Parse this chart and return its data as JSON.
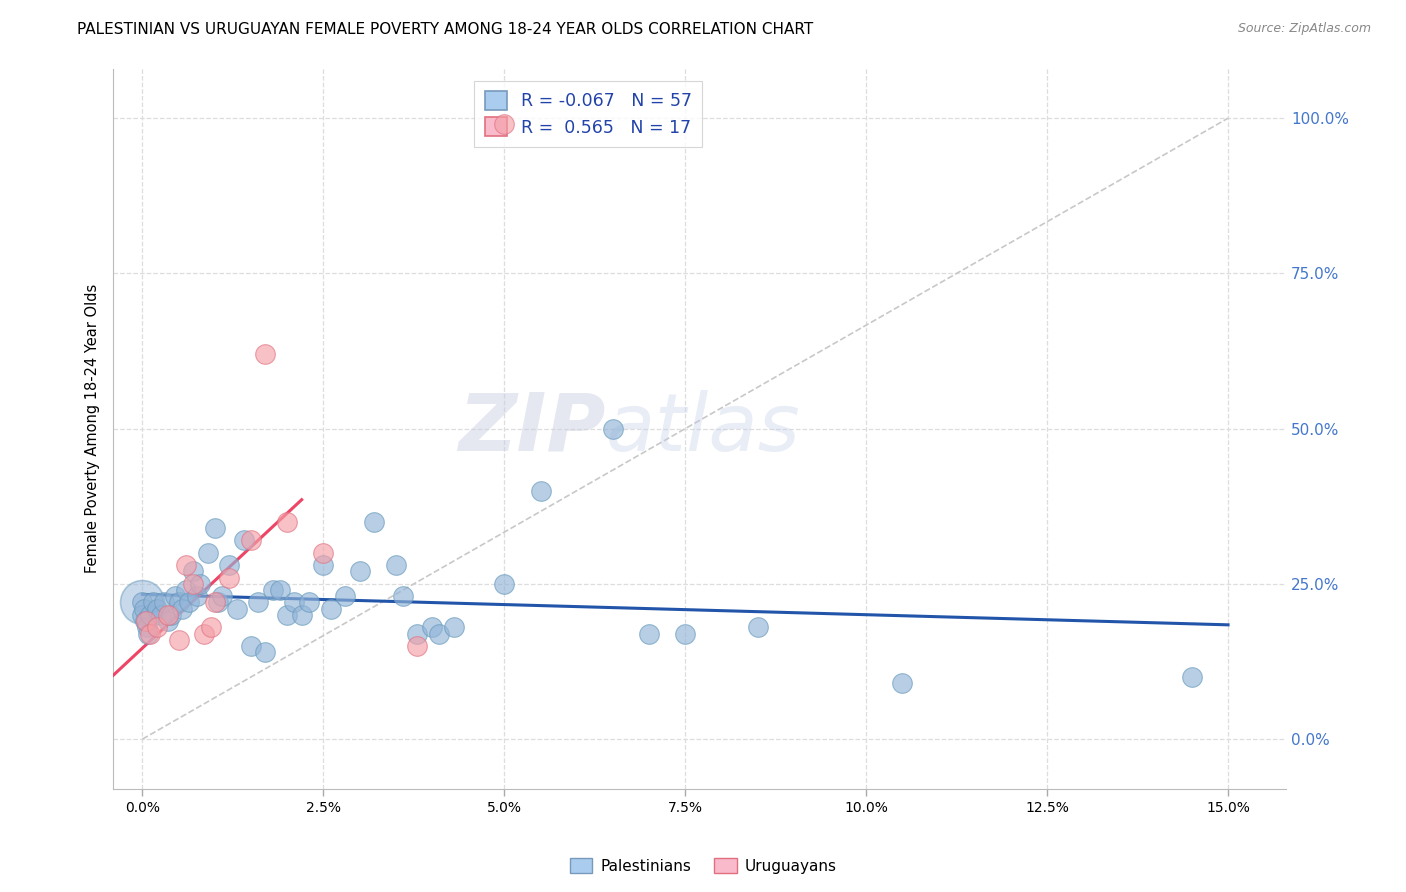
{
  "title": "PALESTINIAN VS URUGUAYAN FEMALE POVERTY AMONG 18-24 YEAR OLDS CORRELATION CHART",
  "source": "Source: ZipAtlas.com",
  "xlabel_vals": [
    0,
    2.5,
    5.0,
    7.5,
    10.0,
    12.5,
    15.0
  ],
  "ylabel_vals": [
    0,
    25,
    50,
    75,
    100
  ],
  "ylabel_label": "Female Poverty Among 18-24 Year Olds",
  "xlim": [
    -0.4,
    15.8
  ],
  "ylim": [
    -8,
    108
  ],
  "blue_color": "#92B4D8",
  "pink_color": "#F4A0A8",
  "blue_edge_color": "#6699BB",
  "pink_edge_color": "#E07080",
  "blue_trend_color": "#2255AA",
  "pink_trend_color": "#EE4466",
  "diag_color": "#C8C8C8",
  "bg_color": "#FFFFFF",
  "grid_color": "#DDDDDD",
  "right_tick_color": "#4477CC",
  "watermark_color": "#D8DCEF",
  "pal_x": [
    0.0,
    0.0,
    0.0,
    0.02,
    0.04,
    0.06,
    0.08,
    0.1,
    0.15,
    0.2,
    0.25,
    0.3,
    0.35,
    0.4,
    0.45,
    0.5,
    0.55,
    0.6,
    0.65,
    0.7,
    0.75,
    0.8,
    0.9,
    1.0,
    1.05,
    1.1,
    1.2,
    1.3,
    1.4,
    1.5,
    1.6,
    1.7,
    1.8,
    1.9,
    2.0,
    2.1,
    2.2,
    2.3,
    2.5,
    2.6,
    2.8,
    3.0,
    3.2,
    3.5,
    3.6,
    3.8,
    4.0,
    4.1,
    4.3,
    5.0,
    5.5,
    6.5,
    7.0,
    7.5,
    8.5,
    10.5,
    14.5
  ],
  "pal_y": [
    22,
    22,
    20,
    21,
    19,
    18,
    17,
    20,
    22,
    21,
    20,
    22,
    19,
    20,
    23,
    22,
    21,
    24,
    22,
    27,
    23,
    25,
    30,
    34,
    22,
    23,
    28,
    21,
    32,
    15,
    22,
    14,
    24,
    24,
    20,
    22,
    20,
    22,
    28,
    21,
    23,
    27,
    35,
    28,
    23,
    17,
    18,
    17,
    18,
    25,
    40,
    50,
    17,
    17,
    18,
    9,
    10
  ],
  "uru_x": [
    0.05,
    0.1,
    0.2,
    0.35,
    0.5,
    0.6,
    0.7,
    0.85,
    0.95,
    1.0,
    1.2,
    1.5,
    1.7,
    2.0,
    2.5,
    3.8,
    5.0
  ],
  "uru_y": [
    19,
    17,
    18,
    20,
    16,
    28,
    25,
    17,
    18,
    22,
    26,
    32,
    62,
    35,
    30,
    15,
    99
  ],
  "big_blue_x": 0.0,
  "big_blue_y": 22,
  "legend_text1": "R = -0.067   N = 57",
  "legend_text2": "R =  0.565   N = 17"
}
